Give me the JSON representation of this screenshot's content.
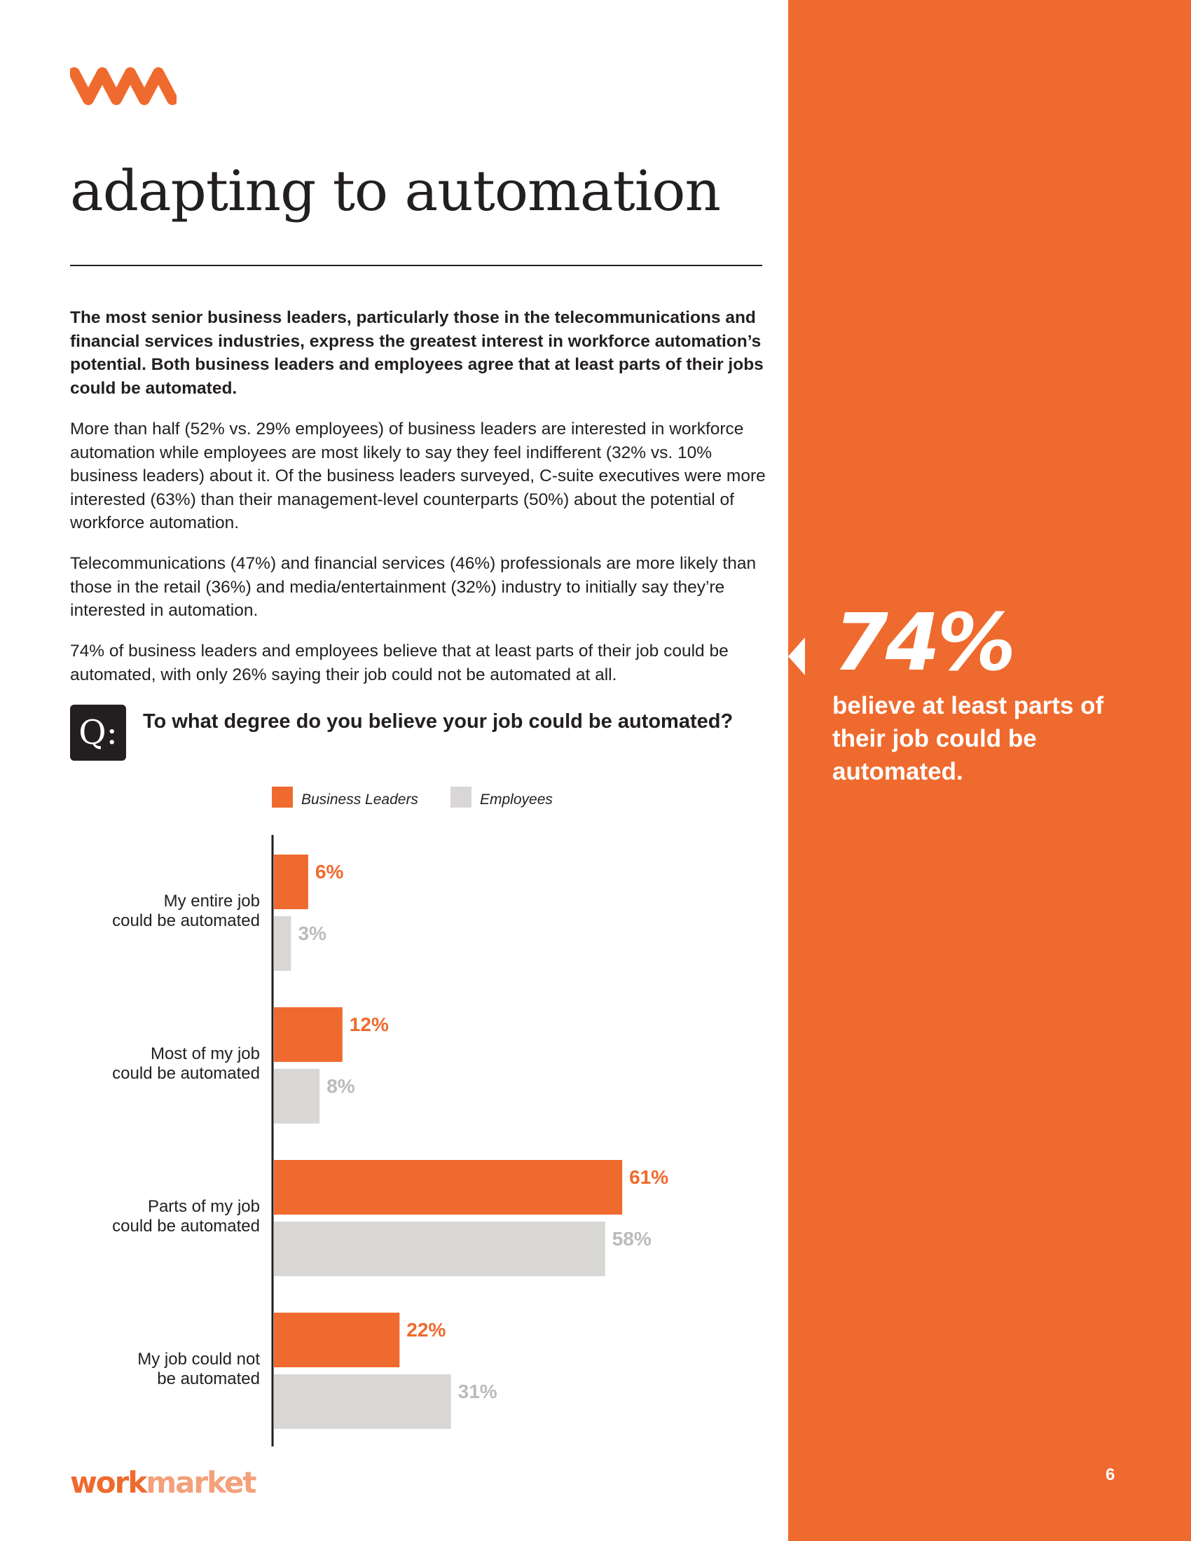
{
  "brand": {
    "logo_icon": "workmarket-wm-icon",
    "wordmark_part1": "work",
    "wordmark_part2": "market",
    "accent_color": "#ef6a2e",
    "grey_color": "#d8d7d6"
  },
  "page": {
    "title": "adapting to automation",
    "number": "6"
  },
  "body": {
    "lead": "The most senior business leaders, particularly those in the telecommunications and financial services industries, express the greatest interest in workforce automation’s potential. Both business leaders and employees agree that at least parts of their jobs could be automated.",
    "paragraphs": [
      "More than half (52% vs. 29% employees) of business leaders are interested in workforce automation while employees are most likely to say they feel indifferent (32% vs. 10% business leaders) about it. Of the business leaders surveyed, C-suite executives were more interested (63%) than their management-level counterparts (50%) about the potential of workforce automation.",
      "Telecommunications (47%) and financial services (46%) professionals are more likely than those in the retail (36%) and media/entertainment (32%) industry to initially say they’re interested in automation.",
      "74% of business leaders and employees believe that at least parts of their job could be automated, with only 26% saying their job could not be automated at all."
    ]
  },
  "question": {
    "badge": "Q:",
    "text": "To what degree do you believe your job could be automated?"
  },
  "sidebar": {
    "stat": "74%",
    "stat_text": "believe at least parts of their job could be automated."
  },
  "chart_data": {
    "type": "bar",
    "orientation": "horizontal",
    "title": "To what degree do you believe your job could be automated?",
    "categories": [
      [
        "My entire job",
        "could be automated"
      ],
      [
        "Most of my job",
        "could be automated"
      ],
      [
        "Parts of my job",
        "could be automated"
      ],
      [
        "My job could not",
        "be automated"
      ]
    ],
    "series": [
      {
        "name": "Business Leaders",
        "color": "#ef6a2e",
        "label_color": "#ef6a2e",
        "values": [
          6,
          12,
          61,
          22
        ],
        "labels": [
          "6%",
          "12%",
          "61%",
          "22%"
        ]
      },
      {
        "name": "Employees",
        "color": "#d8d7d6",
        "label_color": "#bcbbbb",
        "values": [
          3,
          8,
          58,
          31
        ],
        "labels": [
          "3%",
          "8%",
          "58%",
          "31%"
        ]
      }
    ],
    "value_unit": "%",
    "legend_position": "top",
    "grid": false
  }
}
